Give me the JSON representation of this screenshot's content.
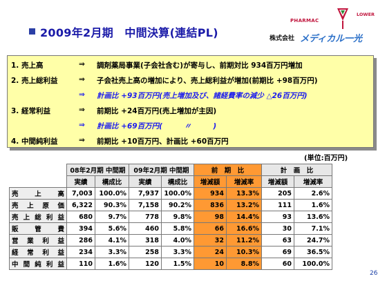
{
  "title": "2009年2月期　中間決算(連結PL)",
  "logo": {
    "pharmac": "PHARMAC",
    "lower": "LOWER",
    "kaisha": "株式会社",
    "name": "メディカル一光"
  },
  "summary": [
    {
      "label": "1. 売上高",
      "arrow": "⇒",
      "text": "調剤薬局事業(子会社含む)が寄与し、前期対比 934百万円増加",
      "style": "normal"
    },
    {
      "label": "2. 売上総利益",
      "arrow": "⇒",
      "text": "子会社売上高の増加により、売上総利益が増加(前期比 +98百万円)",
      "style": "normal"
    },
    {
      "label": "",
      "arrow": "⇒",
      "text": "計画比 +93百万円(売上増加及び、諸経費率の減少 △26百万円)",
      "style": "blue"
    },
    {
      "label": "3. 経常利益",
      "arrow": "⇒",
      "text": "前期比 +24百万円(売上増加が主因)",
      "style": "normal"
    },
    {
      "label": "",
      "arrow": "⇒",
      "text": "計画比 +69百万円(　　　〃　　　)",
      "style": "blue"
    },
    {
      "label": "4. 中間純利益",
      "arrow": "⇒",
      "text": "前期比 +10百万円、計画比 +60百万円",
      "style": "normal"
    }
  ],
  "unit": "(単位:百万円)",
  "table": {
    "groups": [
      "08年2月期 中間期",
      "09年2月期 中間期",
      "前　期　比",
      "計　画　比"
    ],
    "subheaders": [
      "実績",
      "構成比",
      "実績",
      "構成比",
      "増減額",
      "増減率",
      "増減額",
      "増減率"
    ],
    "rows": [
      {
        "label": "売上高",
        "v": [
          "7,003",
          "100.0%",
          "7,937",
          "100.0%",
          "934",
          "13.3%",
          "205",
          "2.6%"
        ]
      },
      {
        "label": "売上原価",
        "v": [
          "6,322",
          "90.3%",
          "7,158",
          "90.2%",
          "836",
          "13.2%",
          "111",
          "1.6%"
        ]
      },
      {
        "label": "売上総利益",
        "v": [
          "680",
          "9.7%",
          "778",
          "9.8%",
          "98",
          "14.4%",
          "93",
          "13.6%"
        ]
      },
      {
        "label": "販管費",
        "v": [
          "394",
          "5.6%",
          "460",
          "5.8%",
          "66",
          "16.6%",
          "30",
          "7.1%"
        ]
      },
      {
        "label": "営業利益",
        "v": [
          "286",
          "4.1%",
          "318",
          "4.0%",
          "32",
          "11.2%",
          "63",
          "24.7%"
        ]
      },
      {
        "label": "経常利益",
        "v": [
          "234",
          "3.3%",
          "258",
          "3.3%",
          "24",
          "10.3%",
          "69",
          "36.5%"
        ]
      },
      {
        "label": "中間純利益",
        "v": [
          "110",
          "1.6%",
          "120",
          "1.5%",
          "10",
          "8.8%",
          "60",
          "100.0%"
        ]
      }
    ]
  },
  "page_number": "26",
  "colors": {
    "title": "#1a1aa8",
    "box": "#ffffa8",
    "orange": "#ff9933",
    "blue_text": "#1a1aee"
  }
}
